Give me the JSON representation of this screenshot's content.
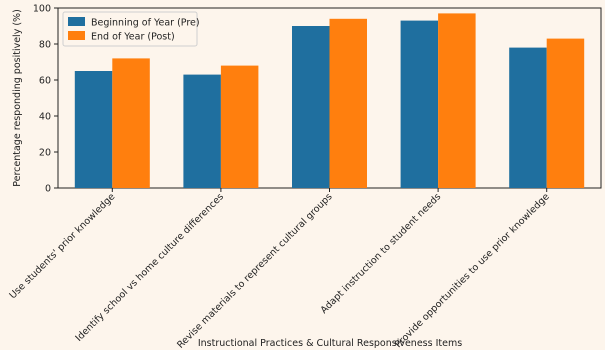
{
  "chart_data": {
    "type": "bar",
    "title": "",
    "xlabel": "Instructional Practices & Cultural Responsiveness Items",
    "ylabel": "Percentage responding positively (%)",
    "ylim": [
      0,
      100
    ],
    "yticks": [
      0,
      20,
      40,
      60,
      80,
      100
    ],
    "grid": false,
    "legend_position": "upper-left",
    "categories": [
      "Use students' prior knowledge",
      "Identify school vs home culture differences",
      "Revise materials to represent cultural groups",
      "Adapt instruction to student needs",
      "Provide opportunities to use prior knowledge"
    ],
    "series": [
      {
        "name": "Beginning of Year (Pre)",
        "color": "#1f6f9f",
        "values": [
          65,
          63,
          90,
          93,
          78
        ]
      },
      {
        "name": "End of Year (Post)",
        "color": "#ff7f0e",
        "values": [
          72,
          68,
          94,
          97,
          83
        ]
      }
    ]
  }
}
